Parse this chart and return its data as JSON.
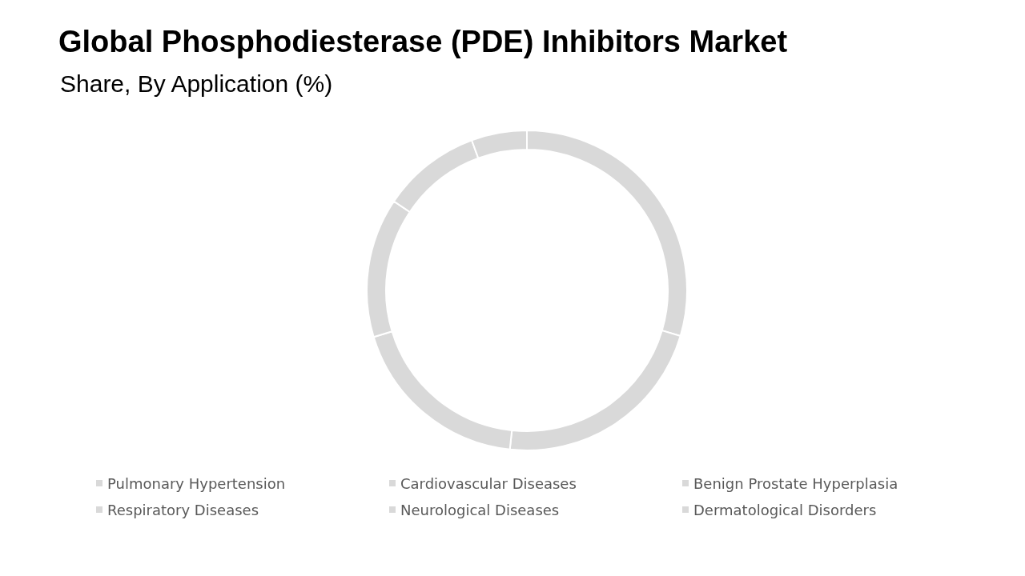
{
  "chart_data": {
    "type": "donut",
    "title": "Global Phosphodiesterase (PDE) Inhibitors Market",
    "subtitle": "Share, By Application (%)",
    "categories": [
      "Pulmonary Hypertension",
      "Cardiovascular Diseases",
      "Benign Prostate Hyperplasia",
      "Respiratory Diseases",
      "Neurological Diseases",
      "Dermatological Disorders"
    ],
    "values": [
      29.6,
      22.1,
      18.6,
      14.1,
      10.0,
      5.6
    ],
    "colors": [
      "#d9d9d9",
      "#d9d9d9",
      "#d9d9d9",
      "#d9d9d9",
      "#d9d9d9",
      "#d9d9d9"
    ],
    "legend": "bottom"
  }
}
